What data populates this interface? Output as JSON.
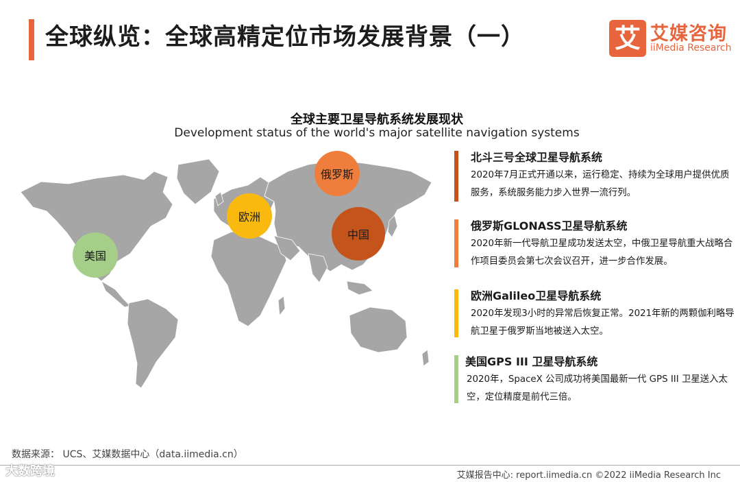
{
  "header": {
    "title": "全球纵览：全球高精定位市场发展背景（一）",
    "accent_color": "#e8643c"
  },
  "logo": {
    "mark": "艾",
    "name_cn": "艾媒咨询",
    "name_en": "iiMedia Research"
  },
  "chart": {
    "title_cn": "全球主要卫星导航系统发展现状",
    "title_en": "Development status of the world's major satellite navigation systems"
  },
  "map_labels": {
    "russia": "俄罗斯",
    "europe": "欧洲",
    "china": "中国",
    "usa": "美国"
  },
  "systems": [
    {
      "name": "北斗三号全球卫星导航系统",
      "description": "2020年7月正式开通以来，运行稳定、持续为全球用户提供优质服务，系统服务能力步入世界一流行列。",
      "color": "#c4541b"
    },
    {
      "name": "俄罗斯GLONASS卫星导航系统",
      "description": "2020年新一代导航卫星成功发送太空，中俄卫星导航重大战略合作项目委员会第七次会议召开，进一步合作发展。",
      "color": "#ef7d3c"
    },
    {
      "name": "欧洲Galileo卫星导航系统",
      "description": "2020年发现3小时的异常后恢复正常。2021年新的两颗伽利略导航卫星于俄罗斯当地被送入太空。",
      "color": "#f9b90f"
    },
    {
      "name": "美国GPS III 卫星导航系统",
      "description": "2020年，SpaceX 公司成功将美国最新一代 GPS III 卫星送入太空，定位精度是前代三倍。",
      "color": "#a5cf88"
    }
  ],
  "source": "数据来源： UCS、艾媒数据中心（data.iimedia.cn）",
  "footer": "艾媒报告中心: report.iimedia.cn   ©2022  iiMedia Research  Inc",
  "watermark": "大数跨境"
}
